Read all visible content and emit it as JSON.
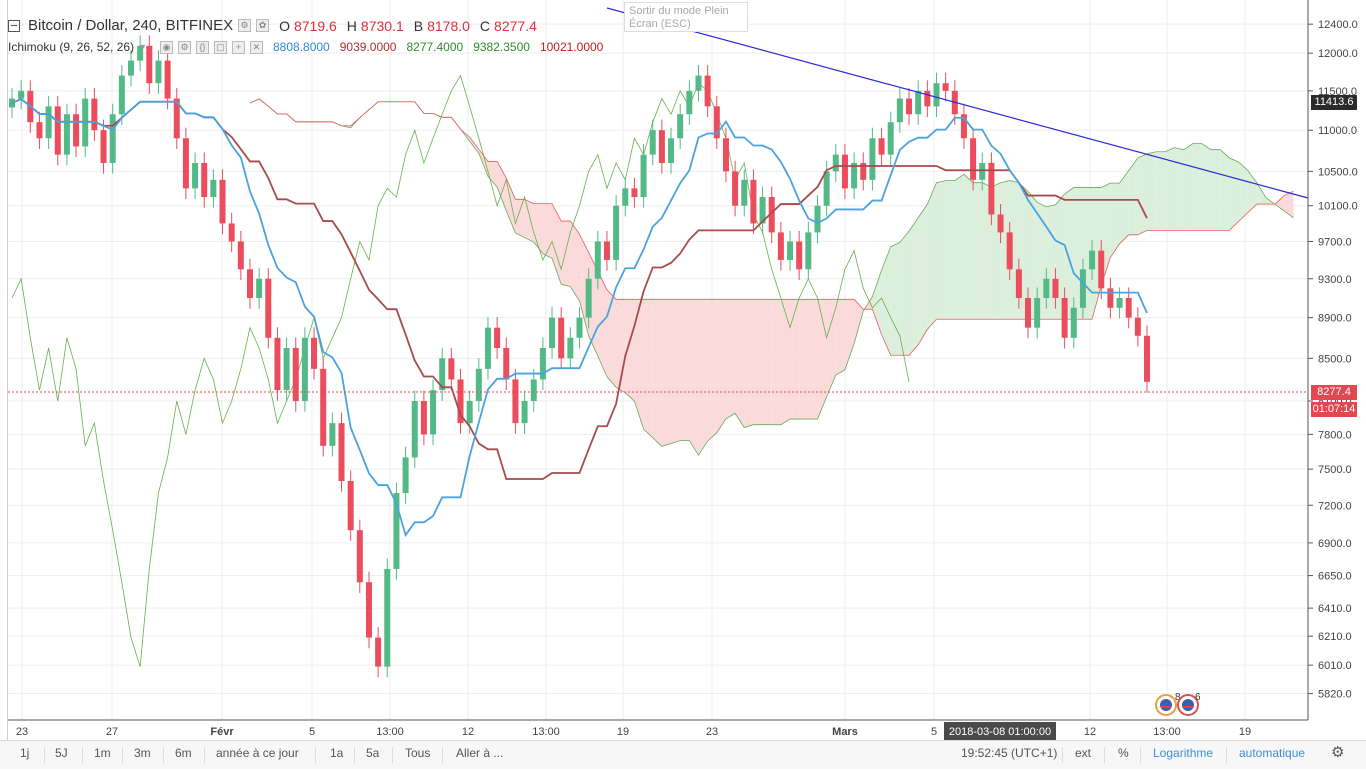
{
  "legend": {
    "symbol_title": "Bitcoin / Dollar, 240, BITFINEX",
    "ohlc": [
      {
        "label": "O",
        "value": "8719.6"
      },
      {
        "label": "H",
        "value": "8730.1"
      },
      {
        "label": "B",
        "value": "8178.0"
      },
      {
        "label": "C",
        "value": "8277.4"
      }
    ],
    "indicator_title": "Ichimoku (9, 26, 52, 26)",
    "indicator_values": [
      {
        "value": "8808.8000",
        "color": "#2f8ad8"
      },
      {
        "value": "9039.0000",
        "color": "#b03030"
      },
      {
        "value": "8277.4000",
        "color": "#2e8b2e"
      },
      {
        "value": "9382.3500",
        "color": "#2e8b2e"
      },
      {
        "value": "10021.0000",
        "color": "#c02020"
      }
    ]
  },
  "tooltip": {
    "line1": "Sortir du mode Plein",
    "line2": "Écran (ESC)"
  },
  "price_axis": {
    "ticks": [
      "12400.0",
      "12000.0",
      "11500.0",
      "11000.0",
      "10500.0",
      "10100.0",
      "9700.0",
      "9300.0",
      "8900.0",
      "8500.0",
      "8100.0",
      "7800.0",
      "7500.0",
      "7200.0",
      "6900.0",
      "6650.0",
      "6410.0",
      "6210.0",
      "6010.0",
      "5820.0"
    ],
    "trendline_price_tag": "11413.6",
    "last_price_tag": "8277.4",
    "countdown_tag": "01:07:14"
  },
  "time_axis": {
    "ticks": [
      "23",
      "27",
      "Févr",
      "5",
      "13:00",
      "12",
      "13:00",
      "19",
      "23",
      "Mars",
      "5",
      "12",
      "13:00",
      "19"
    ],
    "crosshair_label": "2018-03-08 01:00:00"
  },
  "event_badges": [
    "8",
    "6"
  ],
  "bottom_bar": {
    "ranges": [
      "1j",
      "5J",
      "1m",
      "3m",
      "6m",
      "année à ce jour",
      "1a",
      "5a",
      "Tous",
      "Aller à ..."
    ],
    "time": "19:52:45 (UTC+1)",
    "ext": "ext",
    "percent": "%",
    "log": "Logarithme",
    "auto": "automatique"
  },
  "chart_data": {
    "type": "candlestick",
    "title": "Bitcoin / Dollar, 240, BITFINEX",
    "indicator": "Ichimoku (9, 26, 52, 26)",
    "scale": "log",
    "ylim": [
      5700,
      12600
    ],
    "colors": {
      "up": "#53b987",
      "down": "#eb4d5c",
      "tenkan": "#4aa3df",
      "kijun": "#a84b4b",
      "chikou": "#66b04a",
      "cloud_bull": "#dcefdc",
      "cloud_bear": "#fadadb",
      "span_a": "#6aaa5a",
      "span_b": "#e06060",
      "trendline": "#2a2ad8",
      "last_price": "#e34850"
    },
    "last_price": 8277.4,
    "trendline_value": 11413.6,
    "close_series": [
      11400,
      11500,
      11100,
      10900,
      11300,
      10700,
      11200,
      10800,
      11400,
      11000,
      10600,
      11200,
      11700,
      11900,
      12100,
      11600,
      11900,
      11400,
      10900,
      10300,
      10600,
      10200,
      10400,
      9900,
      9700,
      9400,
      9100,
      9300,
      8700,
      8200,
      8600,
      8100,
      8700,
      8400,
      7700,
      7900,
      7400,
      7000,
      6600,
      6200,
      6000,
      6700,
      7300,
      7600,
      8100,
      7800,
      8200,
      8500,
      8300,
      7900,
      8100,
      8400,
      8800,
      8600,
      8300,
      7900,
      8100,
      8300,
      8600,
      8900,
      8500,
      8700,
      8900,
      9300,
      9700,
      9500,
      10100,
      10300,
      10200,
      10700,
      11000,
      10600,
      10900,
      11200,
      11500,
      11700,
      11300,
      10900,
      10500,
      10100,
      10400,
      9900,
      10200,
      9800,
      9500,
      9700,
      9400,
      9800,
      10100,
      10500,
      10700,
      10300,
      10600,
      10400,
      10900,
      10700,
      11100,
      11400,
      11200,
      11500,
      11300,
      11600,
      11500,
      11200,
      10900,
      10400,
      10600,
      10000,
      9800,
      9400,
      9100,
      8800,
      9100,
      9300,
      9100,
      8700,
      9000,
      9400,
      9600,
      9200,
      9000,
      9100,
      8900,
      8719.6,
      8277.4
    ]
  }
}
